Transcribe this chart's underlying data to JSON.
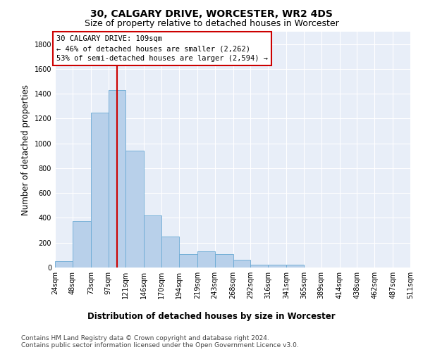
{
  "title": "30, CALGARY DRIVE, WORCESTER, WR2 4DS",
  "subtitle": "Size of property relative to detached houses in Worcester",
  "xlabel": "Distribution of detached houses by size in Worcester",
  "ylabel": "Number of detached properties",
  "bin_edges": [
    24,
    48,
    73,
    97,
    121,
    146,
    170,
    194,
    219,
    243,
    268,
    292,
    316,
    341,
    365,
    389,
    414,
    438,
    462,
    487,
    511
  ],
  "bar_heights": [
    50,
    375,
    1250,
    1430,
    940,
    420,
    250,
    105,
    130,
    110,
    60,
    25,
    25,
    25,
    0,
    0,
    0,
    0,
    0,
    0
  ],
  "bar_color": "#b8d0ea",
  "bar_edge_color": "#6aaad4",
  "property_size": 109,
  "red_line_color": "#cc0000",
  "annotation_line1": "30 CALGARY DRIVE: 109sqm",
  "annotation_line2": "← 46% of detached houses are smaller (2,262)",
  "annotation_line3": "53% of semi-detached houses are larger (2,594) →",
  "annotation_box_color": "#cc0000",
  "ylim": [
    0,
    1900
  ],
  "yticks": [
    0,
    200,
    400,
    600,
    800,
    1000,
    1200,
    1400,
    1600,
    1800
  ],
  "footnote": "Contains HM Land Registry data © Crown copyright and database right 2024.\nContains public sector information licensed under the Open Government Licence v3.0.",
  "background_color": "#ffffff",
  "plot_bg_color": "#e8eef8",
  "grid_color": "#ffffff",
  "title_fontsize": 10,
  "subtitle_fontsize": 9,
  "annotation_fontsize": 7.5,
  "tick_fontsize": 7,
  "label_fontsize": 8.5,
  "footnote_fontsize": 6.5
}
